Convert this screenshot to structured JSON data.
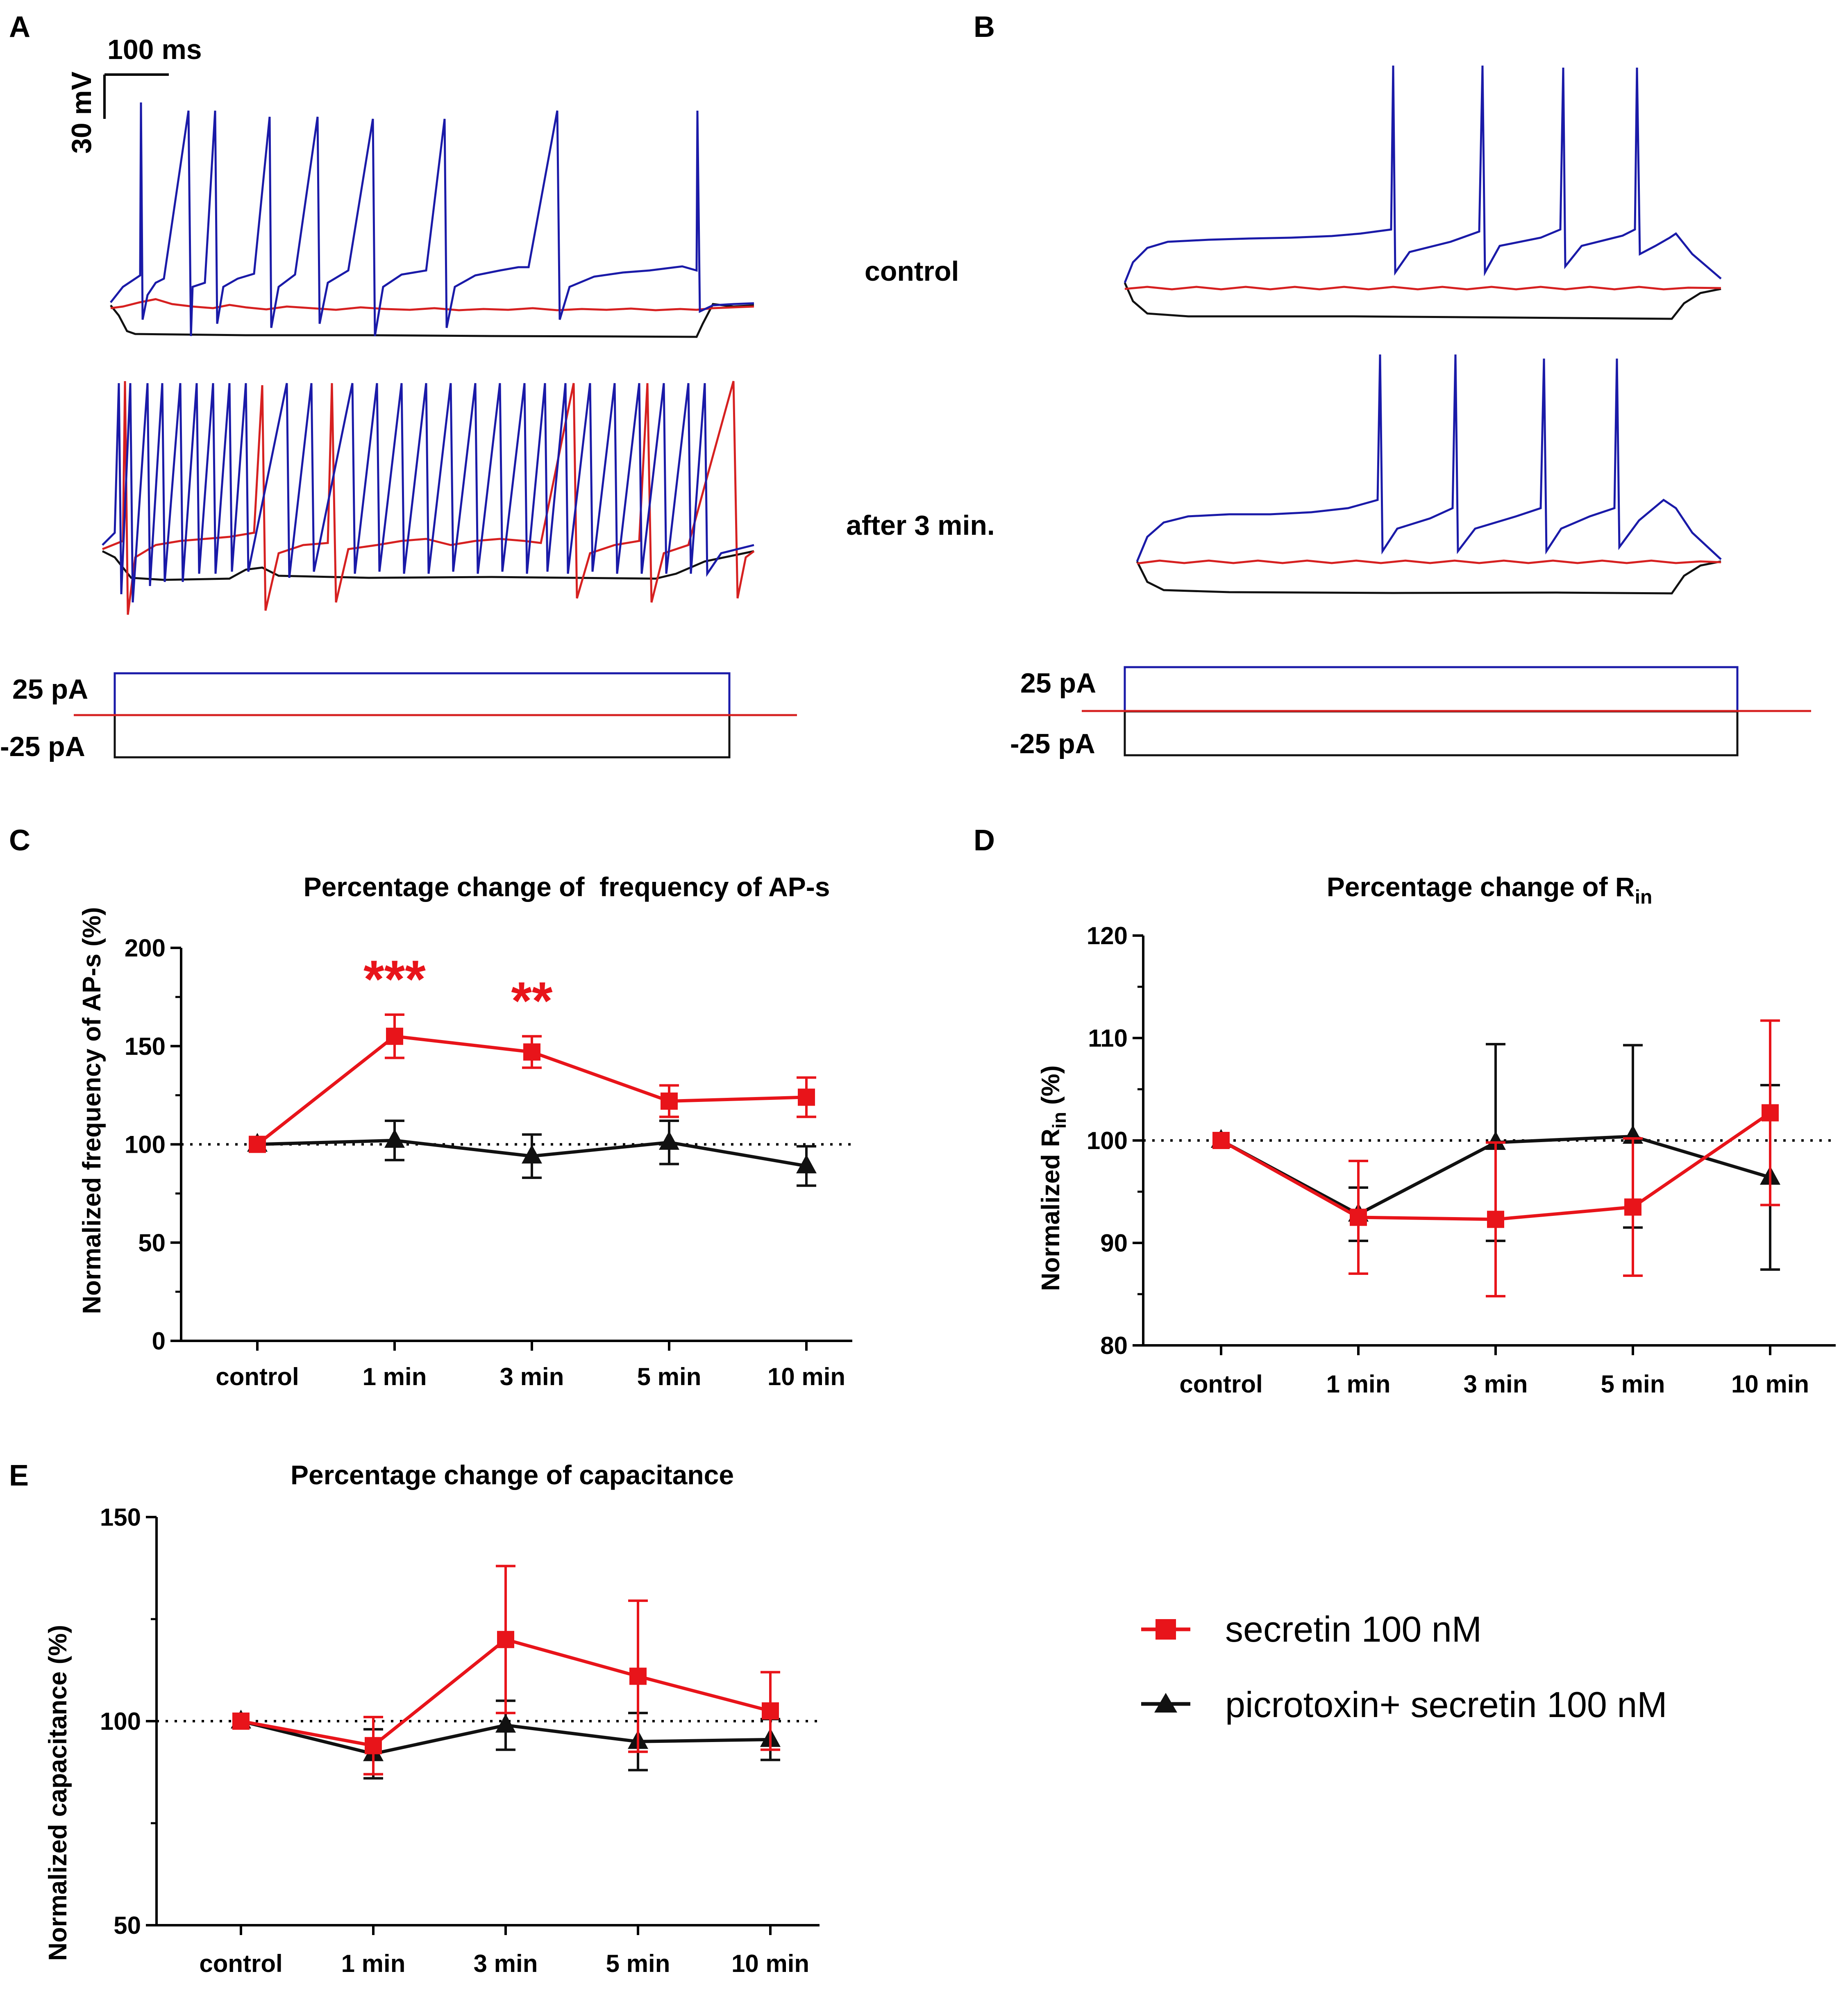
{
  "colors": {
    "red": "#e8141a",
    "black": "#111111",
    "blue": "#1a1aa8",
    "trace_red": "#d62020"
  },
  "panel_labels": [
    "A",
    "B",
    "C",
    "D",
    "E"
  ],
  "traces": {
    "scale_time": "100 ms",
    "scale_voltage": "30 mV",
    "condition_control": "control",
    "condition_after": "after 3 min.",
    "stim_pos": "25 pA",
    "stim_neg": "-25 pA"
  },
  "legend": {
    "secretin": "secretin 100 nM",
    "picrotoxin": "picrotoxin+ secretin 100 nM"
  },
  "chart_data": [
    {
      "id": "C",
      "type": "line",
      "title": "Percentage change of  frequency of AP-s",
      "ylabel": "Normalized frequency of AP-s (%)",
      "xlabel": "",
      "categories": [
        "control",
        "1 min",
        "3 min",
        "5 min",
        "10 min"
      ],
      "ylim": [
        0,
        200
      ],
      "yticks": [
        0,
        50,
        100,
        150,
        200
      ],
      "reference_line": 100,
      "series": [
        {
          "name": "secretin 100 nM",
          "color": "#e8141a",
          "marker": "square",
          "values": [
            100,
            155,
            147,
            122,
            124
          ],
          "err": [
            0,
            11,
            8,
            8,
            10
          ]
        },
        {
          "name": "picrotoxin+ secretin 100 nM",
          "color": "#111111",
          "marker": "triangle",
          "values": [
            100,
            102,
            94,
            101,
            89
          ],
          "err": [
            0,
            10,
            11,
            11,
            10
          ]
        }
      ],
      "annotations": [
        {
          "category": "1 min",
          "text": "***"
        },
        {
          "category": "3 min",
          "text": "**"
        }
      ]
    },
    {
      "id": "D",
      "type": "line",
      "title": "Percentage change of R",
      "title_sub": "in",
      "ylabel": "Normalized R",
      "ylabel_sub": "in",
      "ylabel_tail": " (%)",
      "xlabel": "",
      "categories": [
        "control",
        "1 min",
        "3 min",
        "5 min",
        "10 min"
      ],
      "ylim": [
        80,
        120
      ],
      "yticks": [
        80,
        90,
        100,
        110,
        120
      ],
      "reference_line": 100,
      "series": [
        {
          "name": "secretin 100 nM",
          "color": "#e8141a",
          "marker": "square",
          "values": [
            100,
            92.5,
            92.3,
            93.5,
            102.7
          ],
          "err": [
            0,
            5.5,
            7.5,
            6.7,
            9
          ]
        },
        {
          "name": "picrotoxin+ secretin 100 nM",
          "color": "#111111",
          "marker": "triangle",
          "values": [
            100,
            92.8,
            99.8,
            100.4,
            96.4
          ],
          "err": [
            0,
            2.6,
            9.6,
            8.9,
            9
          ]
        }
      ],
      "annotations": []
    },
    {
      "id": "E",
      "type": "line",
      "title": "Percentage change of capacitance",
      "ylabel": "Normalized capacitance (%)",
      "xlabel": "",
      "categories": [
        "control",
        "1 min",
        "3 min",
        "5 min",
        "10 min"
      ],
      "ylim": [
        50,
        150
      ],
      "yticks": [
        50,
        100,
        150
      ],
      "reference_line": 100,
      "series": [
        {
          "name": "secretin 100 nM",
          "color": "#e8141a",
          "marker": "square",
          "values": [
            100,
            94,
            120,
            111,
            102.5
          ],
          "err": [
            0,
            7,
            18,
            18.5,
            9.5
          ]
        },
        {
          "name": "picrotoxin+ secretin 100 nM",
          "color": "#111111",
          "marker": "triangle",
          "values": [
            100,
            92,
            99,
            95,
            95.5
          ],
          "err": [
            0,
            6,
            6,
            7,
            5
          ]
        }
      ],
      "annotations": []
    }
  ]
}
